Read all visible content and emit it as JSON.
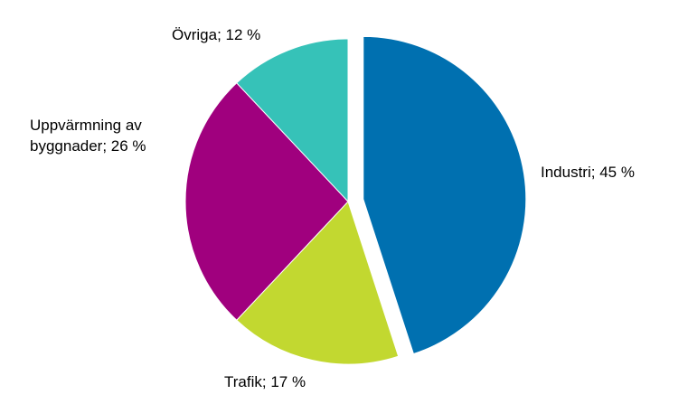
{
  "chart_data": {
    "type": "pie",
    "start_angle_deg": 0,
    "direction": "clockwise",
    "slices": [
      {
        "label": "Industri",
        "value": 45,
        "value_text": "Industri; 45 %",
        "color": "#0070B0",
        "exploded": true
      },
      {
        "label": "Trafik",
        "value": 17,
        "value_text": "Trafik; 17 %",
        "color": "#C2D830",
        "exploded": false
      },
      {
        "label": "Uppvärmning av byggnader",
        "value": 26,
        "value_text_lines": [
          "Uppvärmning  av",
          "byggnader; 26 %"
        ],
        "color": "#A0007E",
        "exploded": false
      },
      {
        "label": "Övriga",
        "value": 12,
        "value_text": "Övriga; 12 %",
        "color": "#36C2B8",
        "exploded": false
      }
    ]
  }
}
